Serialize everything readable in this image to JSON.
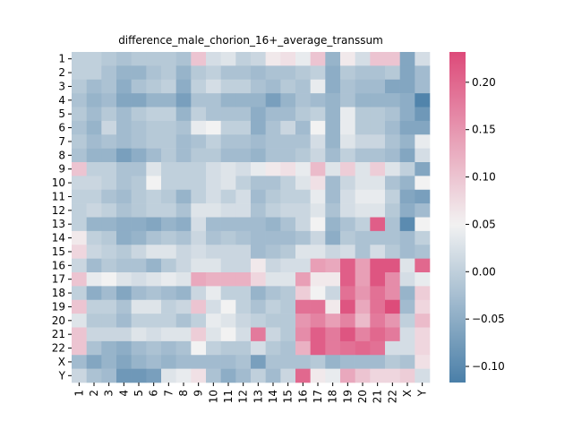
{
  "chart_data": {
    "type": "heatmap",
    "title": "difference_male_chorion_16+_average_transsum",
    "xlabel": "",
    "ylabel": "",
    "row_labels": [
      "1",
      "2",
      "3",
      "4",
      "5",
      "6",
      "7",
      "8",
      "9",
      "10",
      "11",
      "12",
      "13",
      "14",
      "15",
      "16",
      "17",
      "18",
      "19",
      "20",
      "21",
      "22",
      "X",
      "Y"
    ],
    "col_labels": [
      "1",
      "2",
      "3",
      "4",
      "5",
      "6",
      "7",
      "8",
      "9",
      "10",
      "11",
      "12",
      "13",
      "14",
      "15",
      "16",
      "17",
      "18",
      "19",
      "20",
      "21",
      "22",
      "X",
      "Y"
    ],
    "colorbar": {
      "min": -0.117,
      "max": 0.232,
      "center": 0.05,
      "ticks": [
        -0.1,
        -0.05,
        0.0,
        0.05,
        0.1,
        0.15,
        0.2
      ],
      "tick_labels": [
        "−0.10",
        "−0.05",
        "0.00",
        "0.05",
        "0.10",
        "0.15",
        "0.20"
      ],
      "colors": {
        "low": "#4a7fa8",
        "mid": "#f2f2f2",
        "high": "#dd4a79"
      }
    },
    "values": [
      [
        0.0,
        0.0,
        -0.01,
        -0.02,
        -0.01,
        -0.01,
        -0.01,
        -0.02,
        0.1,
        0.02,
        0.03,
        0.0,
        0.01,
        0.06,
        0.07,
        0.04,
        0.1,
        -0.04,
        0.06,
        0.02,
        0.1,
        0.1,
        -0.06,
        0.02
      ],
      [
        0.0,
        0.0,
        -0.02,
        -0.04,
        -0.04,
        -0.02,
        -0.01,
        -0.04,
        -0.01,
        0.0,
        -0.02,
        -0.02,
        -0.03,
        -0.02,
        -0.02,
        -0.01,
        0.0,
        -0.05,
        -0.01,
        -0.02,
        -0.02,
        -0.01,
        -0.06,
        -0.03
      ],
      [
        -0.01,
        -0.03,
        -0.02,
        -0.05,
        -0.02,
        -0.01,
        0.0,
        -0.05,
        0.0,
        0.02,
        0.0,
        0.0,
        -0.02,
        -0.03,
        -0.01,
        -0.02,
        0.04,
        -0.05,
        -0.02,
        -0.03,
        -0.03,
        -0.06,
        -0.06,
        -0.03
      ],
      [
        -0.02,
        -0.04,
        -0.03,
        -0.06,
        -0.06,
        -0.04,
        -0.04,
        -0.07,
        -0.02,
        -0.02,
        -0.04,
        -0.04,
        -0.04,
        -0.07,
        -0.04,
        -0.02,
        -0.03,
        -0.04,
        -0.02,
        -0.04,
        -0.04,
        -0.04,
        -0.05,
        -0.11
      ],
      [
        -0.01,
        -0.03,
        -0.01,
        -0.03,
        -0.01,
        0.0,
        0.0,
        -0.04,
        0.0,
        -0.02,
        -0.02,
        -0.02,
        -0.05,
        -0.03,
        -0.03,
        -0.01,
        0.0,
        -0.04,
        0.04,
        -0.01,
        -0.01,
        -0.02,
        -0.05,
        -0.08
      ],
      [
        -0.02,
        -0.04,
        0.01,
        -0.03,
        -0.02,
        -0.01,
        -0.01,
        -0.02,
        0.04,
        0.05,
        0.0,
        0.0,
        -0.05,
        -0.02,
        0.01,
        -0.03,
        0.05,
        -0.04,
        0.04,
        -0.01,
        -0.01,
        -0.03,
        -0.06,
        -0.06
      ],
      [
        -0.01,
        -0.03,
        -0.02,
        -0.03,
        -0.02,
        -0.01,
        -0.01,
        -0.03,
        -0.02,
        0.0,
        -0.02,
        -0.02,
        -0.03,
        -0.02,
        -0.02,
        -0.02,
        0.02,
        -0.04,
        0.03,
        0.01,
        0.01,
        -0.02,
        -0.04,
        0.04
      ],
      [
        -0.02,
        -0.04,
        -0.04,
        -0.07,
        -0.05,
        -0.03,
        -0.01,
        -0.03,
        -0.01,
        -0.01,
        -0.03,
        -0.03,
        -0.04,
        -0.02,
        -0.02,
        -0.01,
        0.01,
        -0.03,
        0.0,
        -0.02,
        -0.02,
        -0.03,
        -0.06,
        0.02
      ],
      [
        0.1,
        0.0,
        0.0,
        -0.02,
        -0.02,
        0.03,
        0.0,
        0.0,
        0.0,
        0.02,
        0.03,
        0.02,
        0.04,
        0.06,
        0.07,
        0.04,
        0.11,
        0.03,
        0.09,
        0.03,
        0.09,
        0.03,
        0.0,
        -0.06
      ],
      [
        0.01,
        0.01,
        0.0,
        -0.02,
        -0.01,
        0.05,
        0.0,
        0.0,
        0.0,
        0.02,
        0.03,
        0.0,
        -0.02,
        -0.02,
        0.0,
        0.03,
        0.07,
        -0.03,
        0.01,
        0.03,
        0.03,
        -0.02,
        -0.04,
        0.05
      ],
      [
        0.0,
        0.0,
        -0.02,
        -0.03,
        -0.01,
        0.0,
        -0.01,
        -0.04,
        0.0,
        0.02,
        0.0,
        0.02,
        -0.03,
        -0.01,
        0.0,
        0.0,
        0.04,
        -0.03,
        0.02,
        0.04,
        0.04,
        0.0,
        -0.06,
        -0.07
      ],
      [
        0.0,
        0.01,
        0.0,
        -0.02,
        -0.01,
        0.0,
        0.0,
        -0.02,
        0.03,
        0.03,
        0.02,
        0.02,
        -0.02,
        0.0,
        0.01,
        0.01,
        0.03,
        -0.02,
        0.02,
        0.03,
        0.03,
        -0.01,
        -0.05,
        -0.03
      ],
      [
        0.0,
        -0.04,
        -0.04,
        -0.05,
        -0.05,
        -0.06,
        -0.04,
        -0.05,
        0.02,
        -0.03,
        -0.03,
        -0.03,
        -0.03,
        -0.04,
        -0.02,
        0.01,
        0.05,
        -0.04,
        -0.02,
        0.0,
        0.21,
        -0.02,
        -0.1,
        0.05
      ],
      [
        0.06,
        0.0,
        -0.01,
        -0.05,
        -0.04,
        -0.02,
        -0.01,
        -0.02,
        0.01,
        -0.02,
        -0.01,
        -0.02,
        -0.03,
        -0.03,
        -0.03,
        -0.02,
        0.01,
        -0.05,
        -0.01,
        -0.02,
        -0.02,
        -0.02,
        -0.03,
        0.0
      ],
      [
        0.08,
        0.01,
        0.0,
        -0.01,
        0.01,
        0.03,
        0.03,
        0.01,
        0.02,
        0.01,
        0.01,
        0.01,
        -0.03,
        -0.02,
        -0.01,
        0.03,
        0.03,
        0.01,
        0.02,
        -0.02,
        0.02,
        -0.01,
        -0.03,
        -0.02
      ],
      [
        0.01,
        -0.03,
        -0.01,
        -0.02,
        -0.02,
        -0.04,
        -0.01,
        0.01,
        0.03,
        0.03,
        0.01,
        0.01,
        0.06,
        0.01,
        0.02,
        0.02,
        0.14,
        0.13,
        0.21,
        0.14,
        0.22,
        0.22,
        0.03,
        0.2
      ],
      [
        0.1,
        0.04,
        0.05,
        0.03,
        0.02,
        0.03,
        0.04,
        0.03,
        0.13,
        0.12,
        0.12,
        0.12,
        0.08,
        0.03,
        0.03,
        0.14,
        0.06,
        0.06,
        0.21,
        0.14,
        0.22,
        0.16,
        0.02,
        0.04
      ],
      [
        0.0,
        -0.05,
        -0.03,
        -0.06,
        -0.03,
        -0.02,
        -0.03,
        -0.04,
        0.01,
        0.04,
        0.0,
        0.0,
        -0.04,
        -0.02,
        -0.01,
        0.09,
        0.05,
        0.01,
        0.19,
        0.15,
        0.19,
        0.16,
        -0.04,
        0.09
      ],
      [
        0.1,
        0.0,
        0.0,
        -0.02,
        0.03,
        0.03,
        0.0,
        0.01,
        0.1,
        0.02,
        0.05,
        0.0,
        -0.02,
        0.0,
        -0.01,
        0.19,
        0.19,
        0.06,
        0.22,
        0.13,
        0.19,
        0.23,
        -0.03,
        0.08
      ],
      [
        0.03,
        -0.01,
        -0.01,
        -0.03,
        0.0,
        0.0,
        0.0,
        -0.02,
        0.0,
        0.04,
        0.03,
        0.01,
        0.0,
        -0.01,
        -0.01,
        0.15,
        0.17,
        0.14,
        0.17,
        0.11,
        0.18,
        0.15,
        0.0,
        0.11
      ],
      [
        0.1,
        0.01,
        0.01,
        0.01,
        0.03,
        0.02,
        0.03,
        0.03,
        0.09,
        0.03,
        0.05,
        0.02,
        0.18,
        0.01,
        -0.01,
        0.16,
        0.21,
        0.18,
        0.22,
        0.17,
        0.2,
        0.18,
        0.02,
        0.08
      ],
      [
        0.1,
        -0.02,
        -0.04,
        -0.05,
        -0.03,
        -0.02,
        -0.03,
        -0.02,
        0.05,
        0.0,
        -0.01,
        -0.01,
        0.02,
        -0.01,
        -0.02,
        0.12,
        0.21,
        0.18,
        0.19,
        0.2,
        0.19,
        0.02,
        0.02,
        0.08
      ],
      [
        -0.03,
        -0.06,
        -0.04,
        -0.06,
        -0.04,
        -0.03,
        -0.04,
        -0.03,
        -0.03,
        -0.03,
        -0.03,
        -0.02,
        -0.07,
        -0.02,
        -0.02,
        -0.02,
        -0.01,
        -0.04,
        -0.03,
        -0.03,
        -0.03,
        -0.01,
        -0.02,
        0.07
      ],
      [
        0.01,
        -0.02,
        -0.03,
        -0.08,
        -0.08,
        -0.07,
        0.03,
        0.04,
        0.07,
        -0.02,
        -0.05,
        -0.03,
        0.0,
        -0.03,
        0.01,
        0.2,
        0.06,
        0.04,
        0.13,
        0.1,
        0.08,
        0.08,
        0.09,
        0.02
      ]
    ]
  }
}
